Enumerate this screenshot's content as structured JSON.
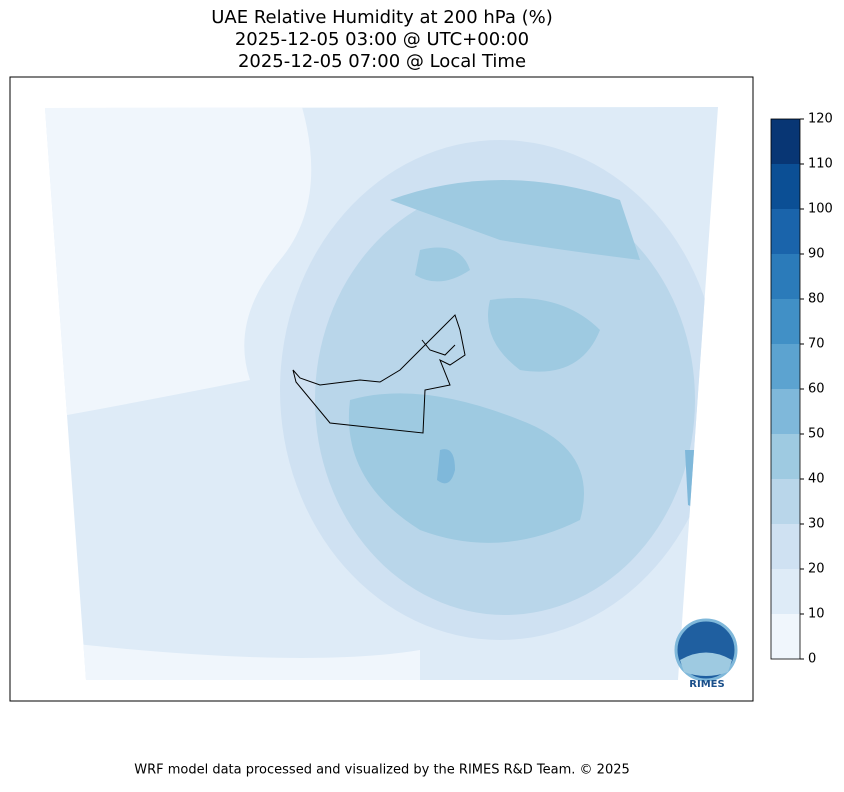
{
  "title": [
    "UAE Relative Humidity at 200 hPa (%)",
    "2025-12-05 03:00 @ UTC+00:00",
    "2025-12-05 07:00 @ Local Time"
  ],
  "colorbar": {
    "ticks": [
      0,
      10,
      20,
      30,
      40,
      50,
      60,
      70,
      80,
      90,
      100,
      110,
      120
    ],
    "colors": [
      "#f0f6fc",
      "#deebf7",
      "#cfe1f2",
      "#b9d6ea",
      "#9ecae1",
      "#7fb8da",
      "#5ca3d0",
      "#4190c6",
      "#2b7bba",
      "#1a64ab",
      "#0b4f95",
      "#083674"
    ]
  },
  "logo": "RIMES",
  "footer": "WRF model data processed and visualized by the RIMES R&D Team. © 2025"
}
